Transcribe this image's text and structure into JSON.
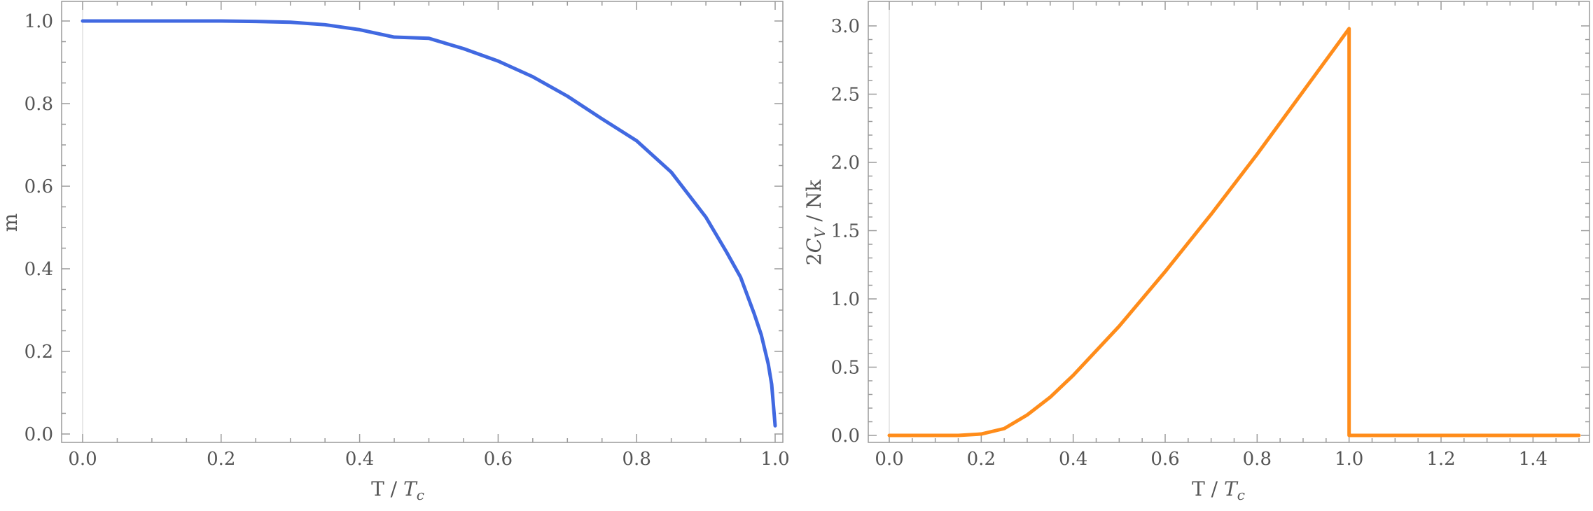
{
  "chart_data": [
    {
      "type": "line",
      "title": "",
      "xlabel_main": "T / ",
      "xlabel_sym": "T",
      "xlabel_sub": "c",
      "ylabel": "m",
      "xlim": [
        0,
        1.0
      ],
      "ylim": [
        0,
        1.0
      ],
      "xticks": [
        "0.0",
        "0.2",
        "0.4",
        "0.6",
        "0.8",
        "1.0"
      ],
      "yticks": [
        "0.0",
        "0.2",
        "0.4",
        "0.6",
        "0.8",
        "1.0"
      ],
      "color": "#4169e1",
      "series": [
        {
          "x": [
            0.0,
            0.1,
            0.2,
            0.25,
            0.3,
            0.35,
            0.4,
            0.45,
            0.5,
            0.55,
            0.6,
            0.65,
            0.7,
            0.75,
            0.8,
            0.85,
            0.9,
            0.93,
            0.95,
            0.97,
            0.98,
            0.99,
            0.995,
            1.0
          ],
          "y": [
            1.0,
            1.0,
            1.0,
            0.999,
            0.997,
            0.991,
            0.979,
            0.961,
            0.958,
            0.933,
            0.903,
            0.865,
            0.818,
            0.763,
            0.71,
            0.634,
            0.525,
            0.44,
            0.38,
            0.29,
            0.24,
            0.17,
            0.12,
            0.02
          ]
        }
      ]
    },
    {
      "type": "line",
      "title": "",
      "xlabel_main": "T / ",
      "xlabel_sym": "T",
      "xlabel_sub": "c",
      "ylabel_prefix": "2",
      "ylabel_sym": "C",
      "ylabel_sub": "V",
      "ylabel_suffix": " / Nk",
      "xlim": [
        0,
        1.5
      ],
      "ylim": [
        0,
        3.0
      ],
      "xticks": [
        "0.0",
        "0.2",
        "0.4",
        "0.6",
        "0.8",
        "1.0",
        "1.2",
        "1.4"
      ],
      "yticks": [
        "0.0",
        "0.5",
        "1.0",
        "1.5",
        "2.0",
        "2.5",
        "3.0"
      ],
      "color": "#ff8c1a",
      "series": [
        {
          "x": [
            0.0,
            0.1,
            0.15,
            0.2,
            0.25,
            0.3,
            0.35,
            0.4,
            0.5,
            0.6,
            0.7,
            0.8,
            0.9,
            0.95,
            1.0,
            1.0,
            1.1,
            1.2,
            1.3,
            1.4,
            1.5
          ],
          "y": [
            0.0,
            0.0,
            0.0,
            0.01,
            0.05,
            0.15,
            0.28,
            0.44,
            0.8,
            1.2,
            1.62,
            2.06,
            2.52,
            2.75,
            2.98,
            0.0,
            0.0,
            0.0,
            0.0,
            0.0,
            0.0
          ]
        }
      ]
    }
  ]
}
